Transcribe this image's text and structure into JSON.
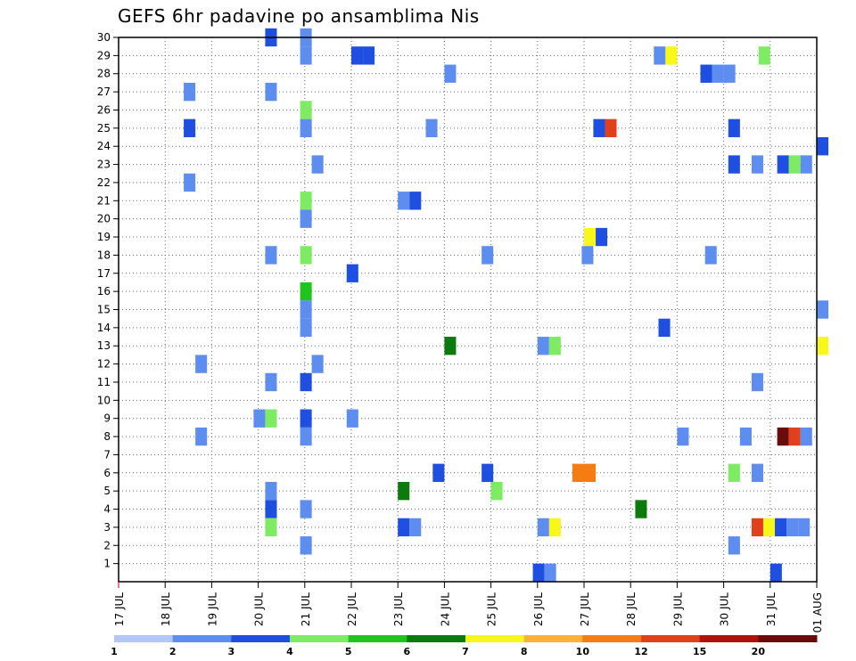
{
  "chart_data": {
    "type": "heatmap",
    "title": "GEFS 6hr padavine po ansamblima Nis",
    "y_ticks": [
      "1",
      "2",
      "3",
      "4",
      "5",
      "6",
      "7",
      "8",
      "9",
      "10",
      "11",
      "12",
      "13",
      "14",
      "15",
      "16",
      "17",
      "18",
      "19",
      "20",
      "21",
      "22",
      "23",
      "24",
      "25",
      "26",
      "27",
      "28",
      "29",
      "30"
    ],
    "x_ticks": [
      "17 JUL",
      "18 JUL",
      "19 JUL",
      "20 JUL",
      "21 JUL",
      "22 JUL",
      "23 JUL",
      "24 JUL",
      "25 JUL",
      "26 JUL",
      "27 JUL",
      "28 JUL",
      "29 JUL",
      "30 JUL",
      "31 JUL",
      "01 AUG"
    ],
    "grid": "dotted",
    "legend_position": "bottom",
    "colorbar": {
      "labels": [
        "1",
        "2",
        "3",
        "4",
        "5",
        "6",
        "7",
        "8",
        "10",
        "12",
        "15",
        "20"
      ],
      "colors": [
        "#b3c7f7",
        "#5e8df0",
        "#1f4fe0",
        "#7deb63",
        "#1fc41f",
        "#0d7a0d",
        "#f7f71a",
        "#fbb135",
        "#f57b12",
        "#e2401c",
        "#b0120d",
        "#6b0c0c"
      ]
    },
    "y_range": [
      0,
      30
    ],
    "x_range_days": [
      0,
      15
    ],
    "cells": [
      {
        "d": 3.15,
        "m": 30,
        "v": 2
      },
      {
        "d": 3.9,
        "m": 30,
        "v": 1
      },
      {
        "d": 3.9,
        "m": 29,
        "v": 1
      },
      {
        "d": 5.0,
        "m": 29,
        "v": 2
      },
      {
        "d": 5.25,
        "m": 29,
        "v": 2
      },
      {
        "d": 11.5,
        "m": 29,
        "v": 1
      },
      {
        "d": 11.75,
        "m": 29,
        "v": 6
      },
      {
        "d": 13.75,
        "m": 29,
        "v": 3
      },
      {
        "d": 1.4,
        "m": 27,
        "v": 1
      },
      {
        "d": 3.15,
        "m": 27,
        "v": 1
      },
      {
        "d": 7.0,
        "m": 28,
        "v": 1
      },
      {
        "d": 12.5,
        "m": 28,
        "v": 2
      },
      {
        "d": 12.75,
        "m": 28,
        "v": 1
      },
      {
        "d": 13.0,
        "m": 28,
        "v": 1
      },
      {
        "d": 3.9,
        "m": 26,
        "v": 3
      },
      {
        "d": 1.4,
        "m": 25,
        "v": 2
      },
      {
        "d": 3.9,
        "m": 25,
        "v": 1
      },
      {
        "d": 6.6,
        "m": 25,
        "v": 1
      },
      {
        "d": 10.2,
        "m": 25,
        "v": 2
      },
      {
        "d": 10.45,
        "m": 25,
        "v": 9
      },
      {
        "d": 13.1,
        "m": 25,
        "v": 2
      },
      {
        "d": 15.0,
        "m": 24,
        "v": 2
      },
      {
        "d": 4.15,
        "m": 23,
        "v": 1
      },
      {
        "d": 13.1,
        "m": 23,
        "v": 2
      },
      {
        "d": 13.6,
        "m": 23,
        "v": 1
      },
      {
        "d": 14.15,
        "m": 23,
        "v": 2
      },
      {
        "d": 14.4,
        "m": 23,
        "v": 3
      },
      {
        "d": 14.65,
        "m": 23,
        "v": 1
      },
      {
        "d": 1.4,
        "m": 22,
        "v": 1
      },
      {
        "d": 3.9,
        "m": 21,
        "v": 3
      },
      {
        "d": 6.0,
        "m": 21,
        "v": 1
      },
      {
        "d": 6.25,
        "m": 21,
        "v": 2
      },
      {
        "d": 3.9,
        "m": 20,
        "v": 1
      },
      {
        "d": 10.0,
        "m": 19,
        "v": 6
      },
      {
        "d": 10.25,
        "m": 19,
        "v": 2
      },
      {
        "d": 3.15,
        "m": 18,
        "v": 1
      },
      {
        "d": 3.9,
        "m": 18,
        "v": 3
      },
      {
        "d": 7.8,
        "m": 18,
        "v": 1
      },
      {
        "d": 9.95,
        "m": 18,
        "v": 1
      },
      {
        "d": 12.6,
        "m": 18,
        "v": 1
      },
      {
        "d": 3.9,
        "m": 16,
        "v": 4
      },
      {
        "d": 4.9,
        "m": 17,
        "v": 2
      },
      {
        "d": 3.9,
        "m": 15,
        "v": 1
      },
      {
        "d": 15.0,
        "m": 15,
        "v": 1
      },
      {
        "d": 3.9,
        "m": 14,
        "v": 1
      },
      {
        "d": 11.6,
        "m": 14,
        "v": 2
      },
      {
        "d": 7.0,
        "m": 13,
        "v": 5
      },
      {
        "d": 9.0,
        "m": 13,
        "v": 1
      },
      {
        "d": 9.25,
        "m": 13,
        "v": 3
      },
      {
        "d": 15.0,
        "m": 13,
        "v": 6
      },
      {
        "d": 1.65,
        "m": 12,
        "v": 1
      },
      {
        "d": 4.15,
        "m": 12,
        "v": 1
      },
      {
        "d": 3.15,
        "m": 11,
        "v": 1
      },
      {
        "d": 3.9,
        "m": 11,
        "v": 2
      },
      {
        "d": 13.6,
        "m": 11,
        "v": 1
      },
      {
        "d": 2.9,
        "m": 9,
        "v": 1
      },
      {
        "d": 3.15,
        "m": 9,
        "v": 3
      },
      {
        "d": 3.9,
        "m": 9,
        "v": 2
      },
      {
        "d": 4.9,
        "m": 9,
        "v": 1
      },
      {
        "d": 1.65,
        "m": 8,
        "v": 1
      },
      {
        "d": 3.9,
        "m": 8,
        "v": 1
      },
      {
        "d": 12.0,
        "m": 8,
        "v": 1
      },
      {
        "d": 13.35,
        "m": 8,
        "v": 1
      },
      {
        "d": 14.15,
        "m": 8,
        "v": 11
      },
      {
        "d": 14.4,
        "m": 8,
        "v": 9
      },
      {
        "d": 14.65,
        "m": 8,
        "v": 1
      },
      {
        "d": 6.75,
        "m": 6,
        "v": 2
      },
      {
        "d": 7.8,
        "m": 6,
        "v": 2
      },
      {
        "d": 9.75,
        "m": 6,
        "v": 8
      },
      {
        "d": 10.0,
        "m": 6,
        "v": 8
      },
      {
        "d": 13.1,
        "m": 6,
        "v": 3
      },
      {
        "d": 13.6,
        "m": 6,
        "v": 1
      },
      {
        "d": 3.15,
        "m": 5,
        "v": 1
      },
      {
        "d": 6.0,
        "m": 5,
        "v": 5
      },
      {
        "d": 8.0,
        "m": 5,
        "v": 3
      },
      {
        "d": 3.15,
        "m": 4,
        "v": 2
      },
      {
        "d": 3.9,
        "m": 4,
        "v": 1
      },
      {
        "d": 11.1,
        "m": 4,
        "v": 5
      },
      {
        "d": 3.15,
        "m": 3,
        "v": 3
      },
      {
        "d": 6.0,
        "m": 3,
        "v": 2
      },
      {
        "d": 6.25,
        "m": 3,
        "v": 1
      },
      {
        "d": 9.0,
        "m": 3,
        "v": 1
      },
      {
        "d": 9.25,
        "m": 3,
        "v": 6
      },
      {
        "d": 13.6,
        "m": 3,
        "v": 9
      },
      {
        "d": 13.85,
        "m": 3,
        "v": 6
      },
      {
        "d": 14.1,
        "m": 3,
        "v": 2
      },
      {
        "d": 14.35,
        "m": 3,
        "v": 1
      },
      {
        "d": 14.6,
        "m": 3,
        "v": 1
      },
      {
        "d": 3.9,
        "m": 2,
        "v": 1
      },
      {
        "d": 13.1,
        "m": 2,
        "v": 1
      },
      {
        "d": 8.9,
        "m": 0.5,
        "v": 2
      },
      {
        "d": 9.15,
        "m": 0.5,
        "v": 1
      },
      {
        "d": 14.0,
        "m": 0.5,
        "v": 2
      }
    ]
  }
}
